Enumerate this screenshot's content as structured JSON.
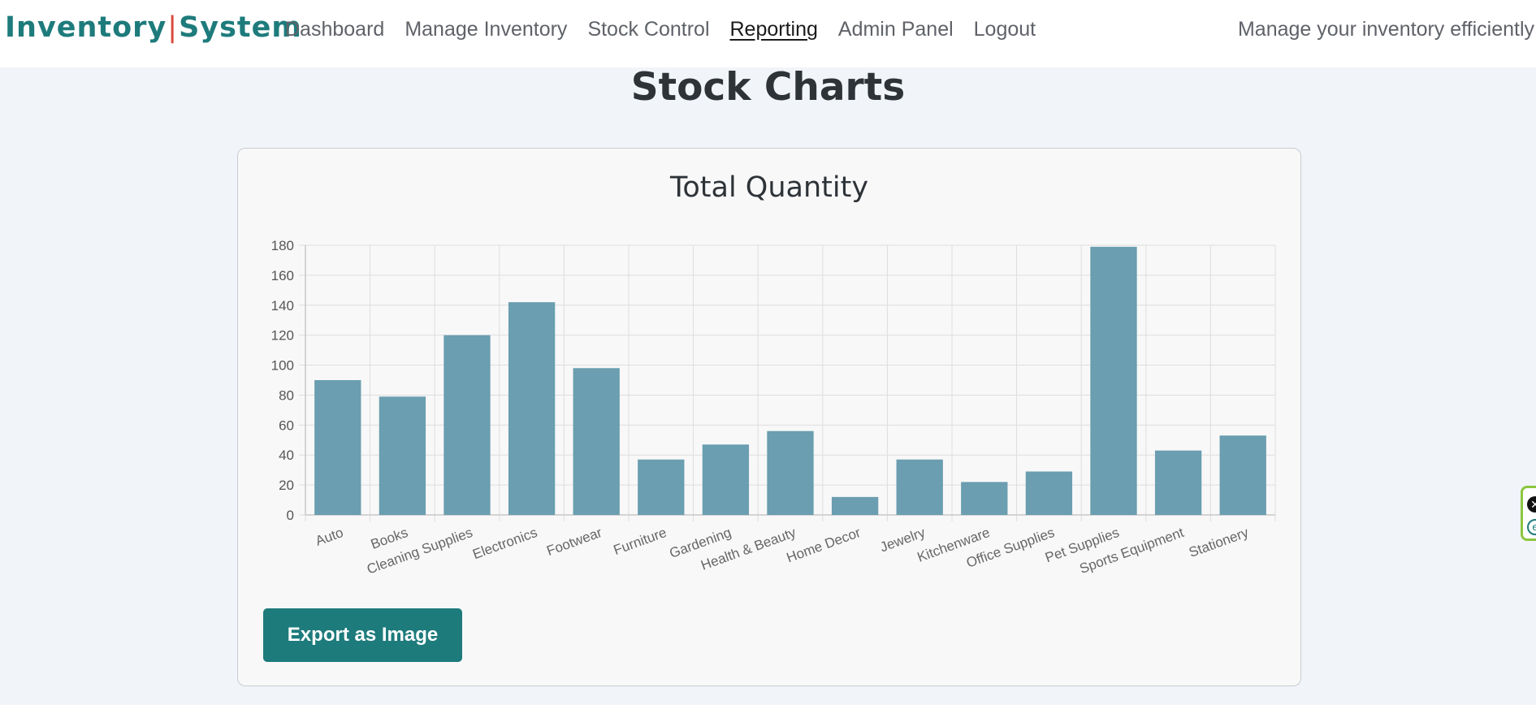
{
  "navbar": {
    "brand_left": "Inventory",
    "brand_sep": "|",
    "brand_right": "System",
    "links": [
      "Dashboard",
      "Manage Inventory",
      "Stock Control",
      "Reporting",
      "Admin Panel",
      "Logout"
    ],
    "active_link": "Reporting",
    "tagline": "Manage your inventory efficiently"
  },
  "page": {
    "title": "Stock Charts"
  },
  "card": {
    "export_label": "Export as Image"
  },
  "colors": {
    "brand": "#1e7b7c",
    "separator": "#d9473a",
    "bar": "#6a9eb0"
  },
  "chart_data": {
    "type": "bar",
    "title": "Total Quantity",
    "xlabel": "",
    "ylabel": "",
    "categories": [
      "Auto",
      "Books",
      "Cleaning Supplies",
      "Electronics",
      "Footwear",
      "Furniture",
      "Gardening",
      "Health & Beauty",
      "Home Decor",
      "Jewelry",
      "Kitchenware",
      "Office Supplies",
      "Pet Supplies",
      "Sports Equipment",
      "Stationery"
    ],
    "values": [
      90,
      79,
      120,
      142,
      98,
      37,
      47,
      56,
      12,
      37,
      22,
      29,
      179,
      43,
      53
    ],
    "ylim": [
      0,
      180
    ],
    "yticks": [
      0,
      20,
      40,
      60,
      80,
      100,
      120,
      140,
      160,
      180
    ],
    "grid": true,
    "legend": "none"
  }
}
